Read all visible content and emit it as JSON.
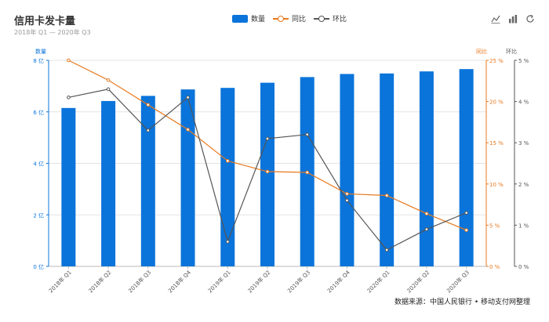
{
  "header": {
    "title": "信用卡发卡量",
    "subtitle": "2018年 Q1 — 2020年 Q3"
  },
  "legend": [
    {
      "label": "数量",
      "kind": "bar",
      "color": "#0a74da"
    },
    {
      "label": "同比",
      "kind": "line",
      "color": "#e8791e"
    },
    {
      "label": "环比",
      "kind": "line",
      "color": "#555555"
    }
  ],
  "toolbar": [
    "line-chart-icon",
    "bar-chart-icon",
    "refresh-icon"
  ],
  "source": "数据来源：中国人民银行 • 移动支付网整理",
  "chart_data": {
    "type": "bar",
    "categories": [
      "2018年 Q1",
      "2018年 Q2",
      "2018年 Q3",
      "2018年 Q4",
      "2019年 Q1",
      "2019年 Q2",
      "2019年 Q3",
      "2019年 Q4",
      "2020年 Q1",
      "2020年 Q2",
      "2020年 Q3"
    ],
    "series": [
      {
        "name": "数量",
        "type": "bar",
        "axis": "left",
        "color": "#0a74da",
        "values": [
          6.15,
          6.42,
          6.62,
          6.87,
          6.93,
          7.13,
          7.35,
          7.47,
          7.49,
          7.57,
          7.66
        ]
      },
      {
        "name": "同比",
        "type": "line",
        "axis": "right1",
        "color": "#e8791e",
        "values": [
          25.0,
          22.6,
          19.6,
          16.6,
          12.8,
          11.5,
          11.4,
          8.8,
          8.6,
          6.4,
          4.4
        ]
      },
      {
        "name": "环比",
        "type": "line",
        "axis": "right2",
        "color": "#555555",
        "values": [
          4.1,
          4.3,
          3.3,
          4.1,
          0.6,
          3.1,
          3.2,
          1.6,
          0.4,
          0.9,
          1.3
        ]
      }
    ],
    "axes": {
      "left": {
        "title": "数量",
        "ylim": [
          0,
          8
        ],
        "ticks": [
          "0 亿",
          "2 亿",
          "4 亿",
          "6 亿",
          "8 亿"
        ],
        "color": "#0a74da"
      },
      "right1": {
        "title": "同比",
        "ylim": [
          0,
          25
        ],
        "ticks": [
          "0 %",
          "5 %",
          "10 %",
          "15 %",
          "20 %",
          "25 %"
        ],
        "color": "#e8791e"
      },
      "right2": {
        "title": "环比",
        "ylim": [
          0,
          5
        ],
        "ticks": [
          "0 %",
          "1 %",
          "2 %",
          "3 %",
          "4 %",
          "5 %"
        ],
        "color": "#555555"
      }
    },
    "grid": true
  }
}
